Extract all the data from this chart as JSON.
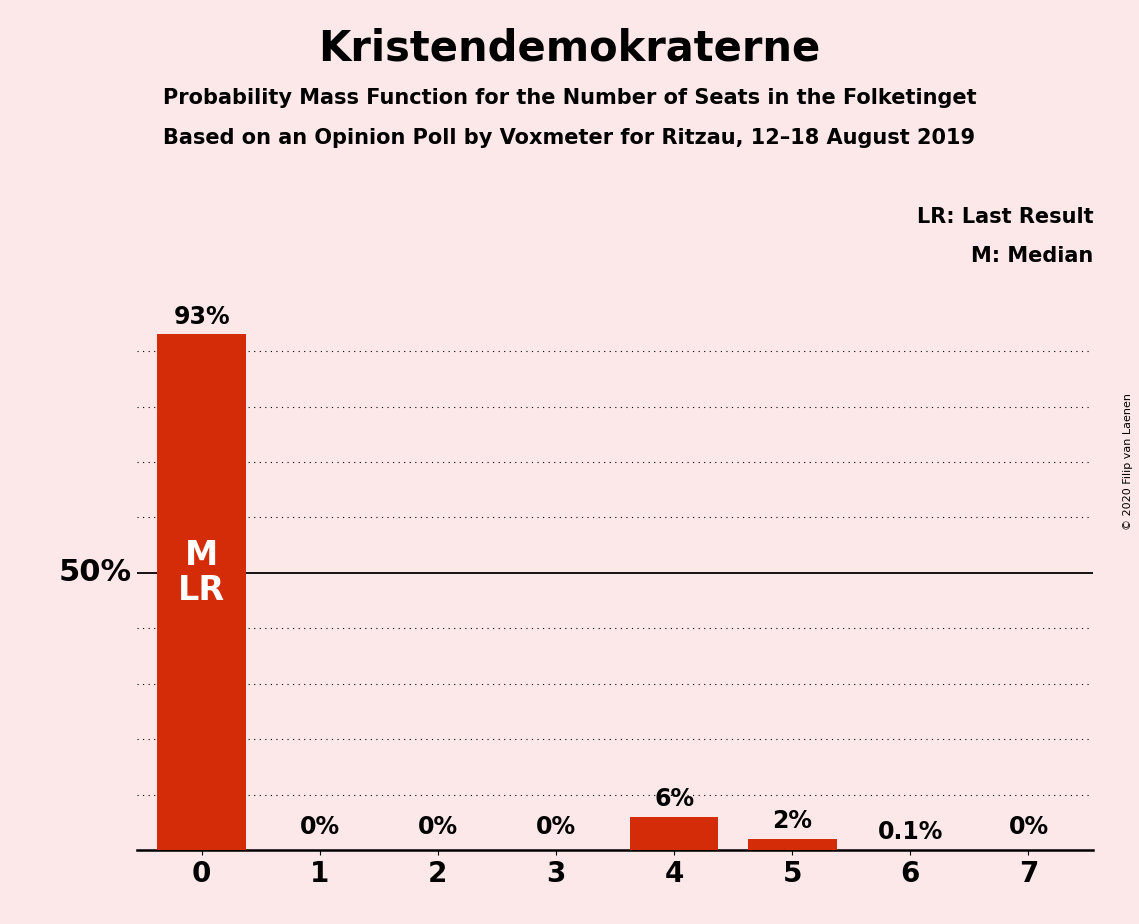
{
  "title": "Kristendemokraterne",
  "subtitle1": "Probability Mass Function for the Number of Seats in the Folketinget",
  "subtitle2": "Based on an Opinion Poll by Voxmeter for Ritzau, 12–18 August 2019",
  "copyright": "© 2020 Filip van Laenen",
  "categories": [
    0,
    1,
    2,
    3,
    4,
    5,
    6,
    7
  ],
  "values": [
    93,
    0,
    0,
    0,
    6,
    2,
    0.1,
    0
  ],
  "bar_labels": [
    "93%",
    "0%",
    "0%",
    "0%",
    "6%",
    "2%",
    "0.1%",
    "0%"
  ],
  "bar_colors": [
    "#d42b08",
    "#f0b0a0",
    "#f0b0a0",
    "#f0b0a0",
    "#d42b08",
    "#d42b08",
    "#f0b0a0",
    "#f0b0a0"
  ],
  "background_color": "#fce8e8",
  "median_label": "M",
  "last_result_label": "LR",
  "legend_lr": "LR: Last Result",
  "legend_m": "M: Median",
  "ytick_label_50": "50%",
  "ylim": [
    0,
    100
  ],
  "yticks": [
    10,
    20,
    30,
    40,
    50,
    60,
    70,
    80,
    90
  ],
  "title_fontsize": 30,
  "subtitle_fontsize": 15,
  "bar_label_fontsize": 17,
  "axis_tick_fontsize": 20,
  "inside_label_fontsize": 24,
  "ylabel_50_fontsize": 22,
  "legend_fontsize": 15,
  "copyright_fontsize": 8
}
